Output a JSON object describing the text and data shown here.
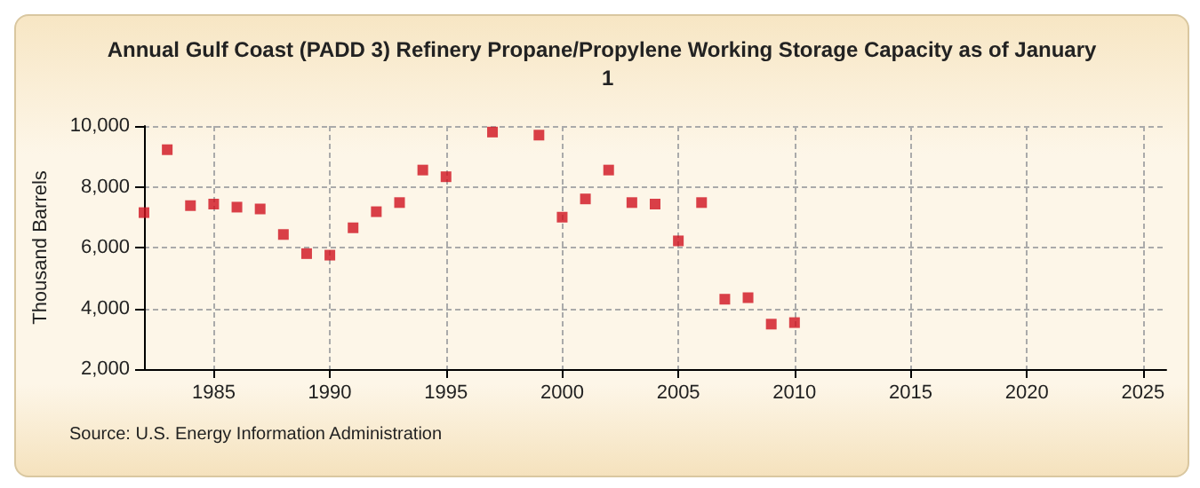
{
  "chart_data": {
    "type": "scatter",
    "title": "Annual Gulf Coast (PADD 3) Refinery Propane/Propylene Working Storage Capacity as of January  1",
    "ylabel": "Thousand Barrels",
    "annotations": [
      "Source: U.S. Energy Information Administration"
    ],
    "x": [
      1982,
      1983,
      1984,
      1985,
      1986,
      1987,
      1988,
      1989,
      1990,
      1991,
      1992,
      1993,
      1994,
      1995,
      1997,
      1999,
      2000,
      2001,
      2002,
      2003,
      2004,
      2005,
      2006,
      2007,
      2008,
      2009,
      2010
    ],
    "series": [
      {
        "color": "#d0121e",
        "values": [
          7150,
          9220,
          7380,
          7430,
          7330,
          7270,
          6430,
          5800,
          5750,
          6650,
          7180,
          7480,
          8550,
          8330,
          9800,
          9700,
          7000,
          7600,
          8550,
          7480,
          7430,
          6220,
          7480,
          4300,
          4350,
          3480,
          3530
        ]
      }
    ],
    "xlim": [
      1982,
      2026
    ],
    "xticks": [
      1985,
      1990,
      1995,
      2000,
      2005,
      2010,
      2015,
      2020,
      2025
    ],
    "ylim": [
      2000,
      10000
    ],
    "yticks": [
      {
        "value": 2000,
        "label": "2,000"
      },
      {
        "value": 4000,
        "label": "4,000"
      },
      {
        "value": 6000,
        "label": "6,000"
      },
      {
        "value": 8000,
        "label": "8,000"
      },
      {
        "value": 10000,
        "label": "10,000"
      }
    ],
    "grid": true,
    "marker": "square"
  }
}
